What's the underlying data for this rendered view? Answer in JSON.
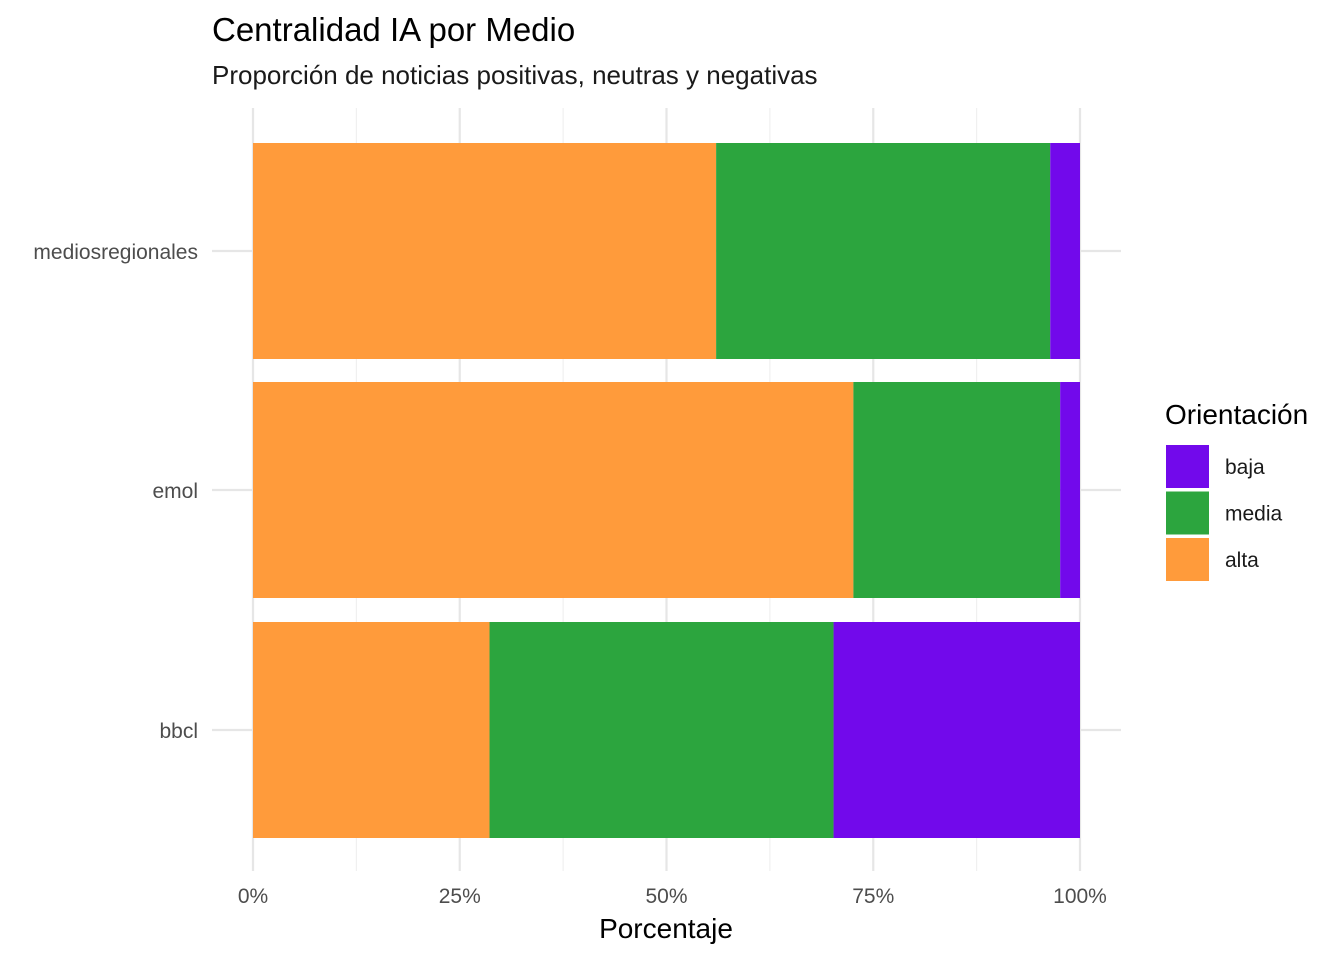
{
  "chart_data": {
    "type": "bar",
    "orientation": "horizontal",
    "stacked": true,
    "title": "Centralidad IA por Medio",
    "subtitle": "Proporción de noticias positivas, neutras y negativas",
    "xlabel": "Porcentaje",
    "ylabel": "",
    "xlim": [
      0,
      100
    ],
    "x_ticks": [
      "0%",
      "25%",
      "50%",
      "75%",
      "100%"
    ],
    "categories": [
      "mediosregionales",
      "emol",
      "bbcl"
    ],
    "series": [
      {
        "name": "alta",
        "color": "#FF9B3B",
        "values": [
          56,
          72.6,
          28.6
        ]
      },
      {
        "name": "media",
        "color": "#2CA53E",
        "values": [
          40.4,
          25,
          41.6
        ]
      },
      {
        "name": "baja",
        "color": "#7209EB",
        "values": [
          3.6,
          2.4,
          29.8
        ]
      }
    ],
    "legend": {
      "title": "Orientación",
      "position": "right",
      "items": [
        "baja",
        "media",
        "alta"
      ]
    },
    "grid": true
  }
}
